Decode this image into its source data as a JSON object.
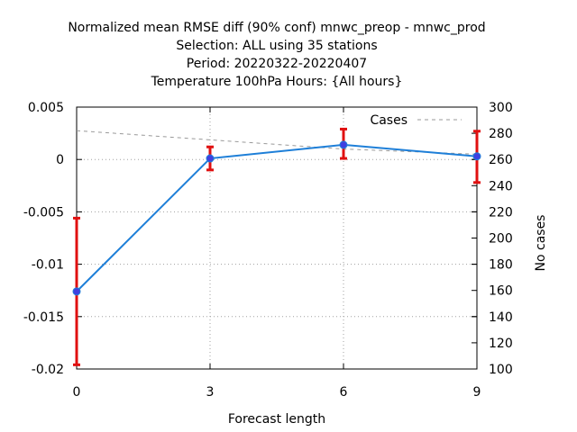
{
  "chart_data": {
    "type": "line",
    "title_lines": [
      "Normalized mean RMSE diff (90% conf) mnwc_preop - mnwc_prod",
      "Selection: ALL using    35 stations",
      "Period: 20220322-20220407",
      "Temperature 100hPa   Hours: {All hours}"
    ],
    "xlabel": "Forecast length",
    "ylabel": "",
    "y2label": "No cases",
    "x": [
      0,
      3,
      6,
      9
    ],
    "xlim": [
      0,
      9
    ],
    "xticks": [
      "0",
      "3",
      "6",
      "9"
    ],
    "ylim": [
      -0.02,
      0.005
    ],
    "yticks": [
      "0.005",
      "0",
      "-0.005",
      "-0.01",
      "-0.015",
      "-0.02"
    ],
    "y2lim": [
      100,
      300
    ],
    "y2ticks": [
      "300",
      "280",
      "260",
      "240",
      "220",
      "200",
      "180",
      "160",
      "140",
      "120",
      "100"
    ],
    "grid": true,
    "legend_position": "top-right",
    "series": [
      {
        "name": "",
        "color": "#1e7fd8",
        "marker_color": "#4040e0",
        "values": [
          -0.0126,
          0.0001,
          0.0014,
          0.0003
        ],
        "error_low": [
          -0.0196,
          -0.001,
          0.0001,
          -0.0022
        ],
        "error_high": [
          -0.0056,
          0.0012,
          0.0029,
          0.0027
        ],
        "error_color": "#e01010"
      },
      {
        "name": "Cases",
        "axis": "right",
        "color": "#999999",
        "dashed": true,
        "values": [
          282,
          275,
          268,
          264
        ]
      }
    ]
  }
}
